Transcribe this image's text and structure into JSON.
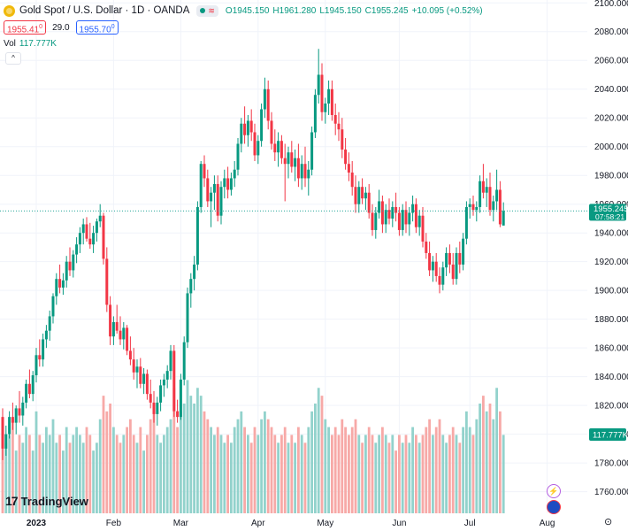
{
  "header": {
    "symbol": "Gold Spot / U.S. Dollar · 1D · OANDA",
    "wave_glyph": "≋",
    "open": "O1945.150",
    "high": "H1961.280",
    "low": "L1945.150",
    "close": "C1955.245",
    "change": "+10.095 (+0.52%)"
  },
  "quote": {
    "bid": "1955.41",
    "bid_sup": "0",
    "spread": "29.0",
    "ask": "1955.70",
    "ask_sup": "0"
  },
  "volume_indicator": {
    "label": "Vol",
    "value": "117.777K"
  },
  "collapse_glyph": "^",
  "branding": {
    "logo_mark": "17",
    "name": "TradingView"
  },
  "price_label": {
    "price": "1955.245",
    "countdown": "07:58:21"
  },
  "volume_label": "117.777K",
  "icons": {
    "bolt": "⚡",
    "flag": "flag-icon",
    "settings": "⊙"
  },
  "colors": {
    "up": "#089981",
    "down": "#f23645",
    "vol_up": "#92d2cc",
    "vol_down": "#f7a9a7",
    "price_line": "#26a69a"
  },
  "chart_data": {
    "type": "candlestick",
    "y_ticks": [
      "2100.000",
      "2080.000",
      "2060.000",
      "2040.000",
      "2020.000",
      "2000.000",
      "1980.000",
      "1960.000",
      "1940.000",
      "1920.000",
      "1900.000",
      "1880.000",
      "1860.000",
      "1840.000",
      "1820.000",
      "1800.000",
      "1780.000",
      "1760.000"
    ],
    "y_min": 1745,
    "y_max": 2102,
    "x_labels": [
      {
        "text": "2023",
        "index": 10
      },
      {
        "text": "Feb",
        "index": 33
      },
      {
        "text": "Mar",
        "index": 53
      },
      {
        "text": "Apr",
        "index": 76
      },
      {
        "text": "May",
        "index": 96
      },
      {
        "text": "Jun",
        "index": 118
      },
      {
        "text": "Jul",
        "index": 139
      },
      {
        "text": "Aug",
        "index": 162
      }
    ],
    "current_price": 1955.245,
    "candles": [
      [
        1812,
        1818,
        1782,
        1790,
        1.1
      ],
      [
        1790,
        1806,
        1785,
        1800,
        0.9
      ],
      [
        1800,
        1816,
        1797,
        1812,
        1.0
      ],
      [
        1812,
        1822,
        1803,
        1808,
        1.2
      ],
      [
        1808,
        1820,
        1800,
        1818,
        0.8
      ],
      [
        1818,
        1830,
        1808,
        1813,
        1.0
      ],
      [
        1813,
        1826,
        1806,
        1822,
        0.9
      ],
      [
        1822,
        1838,
        1818,
        1835,
        1.1
      ],
      [
        1835,
        1845,
        1825,
        1828,
        1.0
      ],
      [
        1828,
        1844,
        1823,
        1841,
        0.8
      ],
      [
        1841,
        1860,
        1836,
        1855,
        1.3
      ],
      [
        1855,
        1866,
        1847,
        1852,
        1.0
      ],
      [
        1852,
        1870,
        1847,
        1866,
        0.9
      ],
      [
        1866,
        1876,
        1860,
        1872,
        1.1
      ],
      [
        1872,
        1886,
        1865,
        1882,
        1.0
      ],
      [
        1882,
        1898,
        1877,
        1896,
        1.2
      ],
      [
        1896,
        1912,
        1890,
        1908,
        0.9
      ],
      [
        1908,
        1918,
        1898,
        1902,
        1.0
      ],
      [
        1902,
        1912,
        1897,
        1907,
        0.8
      ],
      [
        1907,
        1924,
        1902,
        1920,
        1.1
      ],
      [
        1920,
        1930,
        1910,
        1914,
        0.9
      ],
      [
        1914,
        1928,
        1909,
        1925,
        1.0
      ],
      [
        1925,
        1937,
        1919,
        1932,
        1.1
      ],
      [
        1932,
        1944,
        1926,
        1940,
        1.0
      ],
      [
        1940,
        1950,
        1932,
        1946,
        0.9
      ],
      [
        1946,
        1951,
        1934,
        1936,
        1.1
      ],
      [
        1936,
        1947,
        1929,
        1932,
        1.0
      ],
      [
        1932,
        1945,
        1926,
        1940,
        0.8
      ],
      [
        1940,
        1950,
        1934,
        1948,
        0.9
      ],
      [
        1948,
        1960,
        1944,
        1952,
        1.2
      ],
      [
        1952,
        1954,
        1918,
        1922,
        1.5
      ],
      [
        1922,
        1930,
        1885,
        1890,
        1.3
      ],
      [
        1890,
        1896,
        1862,
        1868,
        1.4
      ],
      [
        1868,
        1882,
        1862,
        1878,
        1.1
      ],
      [
        1878,
        1890,
        1870,
        1872,
        1.0
      ],
      [
        1872,
        1882,
        1862,
        1866,
        0.9
      ],
      [
        1866,
        1878,
        1859,
        1874,
        1.0
      ],
      [
        1874,
        1876,
        1855,
        1858,
        1.1
      ],
      [
        1858,
        1868,
        1848,
        1852,
        1.2
      ],
      [
        1852,
        1860,
        1838,
        1843,
        1.0
      ],
      [
        1843,
        1852,
        1832,
        1847,
        0.9
      ],
      [
        1847,
        1853,
        1832,
        1835,
        1.1
      ],
      [
        1835,
        1846,
        1828,
        1842,
        0.8
      ],
      [
        1842,
        1845,
        1824,
        1828,
        1.0
      ],
      [
        1828,
        1838,
        1818,
        1822,
        1.2
      ],
      [
        1822,
        1830,
        1808,
        1814,
        1.3
      ],
      [
        1814,
        1826,
        1806,
        1822,
        1.0
      ],
      [
        1822,
        1838,
        1816,
        1834,
        0.9
      ],
      [
        1834,
        1842,
        1826,
        1838,
        1.0
      ],
      [
        1838,
        1848,
        1832,
        1844,
        1.1
      ],
      [
        1844,
        1862,
        1838,
        1858,
        1.2
      ],
      [
        1858,
        1862,
        1812,
        1816,
        1.6
      ],
      [
        1816,
        1824,
        1808,
        1812,
        1.1
      ],
      [
        1812,
        1842,
        1810,
        1838,
        1.3
      ],
      [
        1838,
        1868,
        1834,
        1864,
        1.4
      ],
      [
        1864,
        1902,
        1860,
        1898,
        1.7
      ],
      [
        1898,
        1912,
        1888,
        1908,
        1.5
      ],
      [
        1908,
        1924,
        1900,
        1918,
        1.4
      ],
      [
        1918,
        1962,
        1914,
        1958,
        1.6
      ],
      [
        1958,
        1990,
        1954,
        1988,
        1.5
      ],
      [
        1988,
        1994,
        1972,
        1978,
        1.3
      ],
      [
        1978,
        1984,
        1958,
        1962,
        1.2
      ],
      [
        1962,
        1972,
        1944,
        1968,
        1.1
      ],
      [
        1968,
        1980,
        1956,
        1974,
        1.0
      ],
      [
        1974,
        1980,
        1948,
        1952,
        1.1
      ],
      [
        1952,
        1976,
        1946,
        1972,
        1.0
      ],
      [
        1972,
        1984,
        1964,
        1978,
        0.9
      ],
      [
        1978,
        1986,
        1964,
        1970,
        1.0
      ],
      [
        1970,
        1982,
        1966,
        1978,
        0.9
      ],
      [
        1978,
        1990,
        1972,
        1984,
        1.1
      ],
      [
        1984,
        2006,
        1980,
        2002,
        1.2
      ],
      [
        2002,
        2020,
        1996,
        2016,
        1.3
      ],
      [
        2016,
        2028,
        2002,
        2008,
        1.1
      ],
      [
        2008,
        2022,
        2000,
        2018,
        1.0
      ],
      [
        2018,
        2026,
        2004,
        2010,
        0.9
      ],
      [
        2010,
        2016,
        1990,
        1994,
        1.1
      ],
      [
        1994,
        2008,
        1988,
        2004,
        1.0
      ],
      [
        2004,
        2030,
        2000,
        2026,
        1.2
      ],
      [
        2026,
        2048,
        2020,
        2040,
        1.3
      ],
      [
        2040,
        2046,
        2012,
        2018,
        1.2
      ],
      [
        2018,
        2024,
        1998,
        2002,
        1.1
      ],
      [
        2002,
        2012,
        1990,
        1996,
        1.0
      ],
      [
        1996,
        2010,
        1986,
        2004,
        0.9
      ],
      [
        2004,
        2008,
        1988,
        1992,
        1.0
      ],
      [
        1992,
        2002,
        1962,
        1988,
        1.1
      ],
      [
        1988,
        2000,
        1978,
        1996,
        0.9
      ],
      [
        1996,
        2004,
        1982,
        1986,
        1.0
      ],
      [
        1986,
        1998,
        1976,
        1992,
        0.9
      ],
      [
        1992,
        2002,
        1972,
        1978,
        1.1
      ],
      [
        1978,
        1994,
        1970,
        1988,
        1.0
      ],
      [
        1988,
        2000,
        1972,
        1978,
        0.9
      ],
      [
        1978,
        1990,
        1966,
        1984,
        1.1
      ],
      [
        1984,
        2014,
        1980,
        2010,
        1.3
      ],
      [
        2010,
        2040,
        2006,
        2036,
        1.4
      ],
      [
        2036,
        2068,
        2030,
        2050,
        1.6
      ],
      [
        2050,
        2058,
        2018,
        2024,
        1.5
      ],
      [
        2024,
        2034,
        2016,
        2030,
        1.2
      ],
      [
        2030,
        2046,
        2022,
        2040,
        1.1
      ],
      [
        2040,
        2046,
        2018,
        2022,
        1.0
      ],
      [
        2022,
        2030,
        2008,
        2016,
        1.1
      ],
      [
        2016,
        2024,
        2004,
        2012,
        1.0
      ],
      [
        2012,
        2020,
        1992,
        1998,
        1.2
      ],
      [
        1998,
        2006,
        1984,
        1988,
        1.1
      ],
      [
        1988,
        1996,
        1976,
        1982,
        1.0
      ],
      [
        1982,
        1990,
        1966,
        1972,
        1.1
      ],
      [
        1972,
        1980,
        1954,
        1960,
        1.2
      ],
      [
        1960,
        1976,
        1954,
        1972,
        1.0
      ],
      [
        1972,
        1978,
        1960,
        1964,
        0.9
      ],
      [
        1964,
        1972,
        1956,
        1968,
        1.0
      ],
      [
        1968,
        1974,
        1950,
        1954,
        1.1
      ],
      [
        1954,
        1960,
        1938,
        1942,
        1.0
      ],
      [
        1942,
        1958,
        1936,
        1954,
        0.9
      ],
      [
        1954,
        1970,
        1950,
        1962,
        1.0
      ],
      [
        1962,
        1966,
        1940,
        1946,
        1.1
      ],
      [
        1946,
        1960,
        1940,
        1956,
        1.0
      ],
      [
        1956,
        1964,
        1946,
        1950,
        0.9
      ],
      [
        1950,
        1962,
        1944,
        1958,
        1.0
      ],
      [
        1958,
        1968,
        1948,
        1954,
        0.8
      ],
      [
        1954,
        1958,
        1938,
        1942,
        1.0
      ],
      [
        1942,
        1960,
        1938,
        1956,
        0.9
      ],
      [
        1956,
        1962,
        1940,
        1946,
        1.0
      ],
      [
        1946,
        1958,
        1938,
        1954,
        0.9
      ],
      [
        1954,
        1966,
        1948,
        1960,
        1.1
      ],
      [
        1960,
        1964,
        1940,
        1944,
        1.0
      ],
      [
        1944,
        1956,
        1938,
        1952,
        0.9
      ],
      [
        1952,
        1958,
        1930,
        1934,
        1.0
      ],
      [
        1934,
        1940,
        1922,
        1926,
        1.1
      ],
      [
        1926,
        1934,
        1910,
        1914,
        1.2
      ],
      [
        1914,
        1924,
        1906,
        1920,
        1.0
      ],
      [
        1920,
        1926,
        1906,
        1910,
        1.1
      ],
      [
        1910,
        1916,
        1898,
        1904,
        1.2
      ],
      [
        1904,
        1920,
        1900,
        1916,
        1.0
      ],
      [
        1916,
        1930,
        1910,
        1926,
        0.9
      ],
      [
        1926,
        1932,
        1912,
        1918,
        1.0
      ],
      [
        1918,
        1926,
        1904,
        1908,
        1.1
      ],
      [
        1908,
        1930,
        1904,
        1926,
        1.0
      ],
      [
        1926,
        1934,
        1912,
        1918,
        0.9
      ],
      [
        1918,
        1940,
        1914,
        1936,
        1.1
      ],
      [
        1936,
        1962,
        1932,
        1958,
        1.3
      ],
      [
        1958,
        1964,
        1950,
        1960,
        1.1
      ],
      [
        1960,
        1966,
        1952,
        1956,
        1.0
      ],
      [
        1956,
        1962,
        1948,
        1958,
        1.2
      ],
      [
        1958,
        1980,
        1954,
        1976,
        1.4
      ],
      [
        1976,
        1988,
        1964,
        1968,
        1.5
      ],
      [
        1968,
        1978,
        1958,
        1972,
        1.3
      ],
      [
        1972,
        1982,
        1952,
        1956,
        1.4
      ],
      [
        1956,
        1966,
        1948,
        1962,
        1.2
      ],
      [
        1962,
        1984,
        1956,
        1970,
        1.6
      ],
      [
        1970,
        1976,
        1944,
        1946,
        1.3
      ],
      [
        1945.15,
        1961.28,
        1945.15,
        1955.245,
        1.0
      ]
    ],
    "vol_max": 1.75
  }
}
